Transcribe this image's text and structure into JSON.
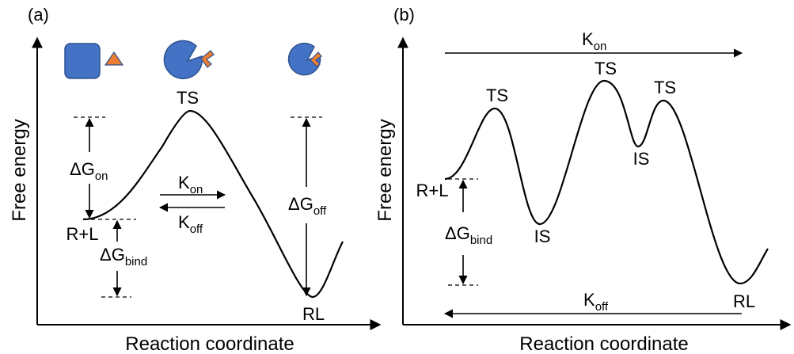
{
  "panels": [
    {
      "label": "(a)",
      "y_axis": "Free energy",
      "x_axis": "Reaction coordinate",
      "states": {
        "transition": "TS",
        "start": "R+L",
        "end": "RL"
      },
      "energies": [
        {
          "symbol": "ΔG",
          "sub": "on"
        },
        {
          "symbol": "ΔG",
          "sub": "off"
        },
        {
          "symbol": "ΔG",
          "sub": "bind"
        }
      ],
      "rates": [
        {
          "symbol": "K",
          "sub": "on"
        },
        {
          "symbol": "K",
          "sub": "off"
        }
      ]
    },
    {
      "label": "(b)",
      "y_axis": "Free energy",
      "x_axis": "Reaction coordinate",
      "states": {
        "transitions": [
          "TS",
          "TS",
          "TS"
        ],
        "intermediates": [
          "IS",
          "IS"
        ],
        "start": "R+L",
        "end": "RL"
      },
      "energies": [
        {
          "symbol": "ΔG",
          "sub": "bind"
        }
      ],
      "rates": [
        {
          "symbol": "K",
          "sub": "on"
        },
        {
          "symbol": "K",
          "sub": "off"
        }
      ]
    }
  ]
}
